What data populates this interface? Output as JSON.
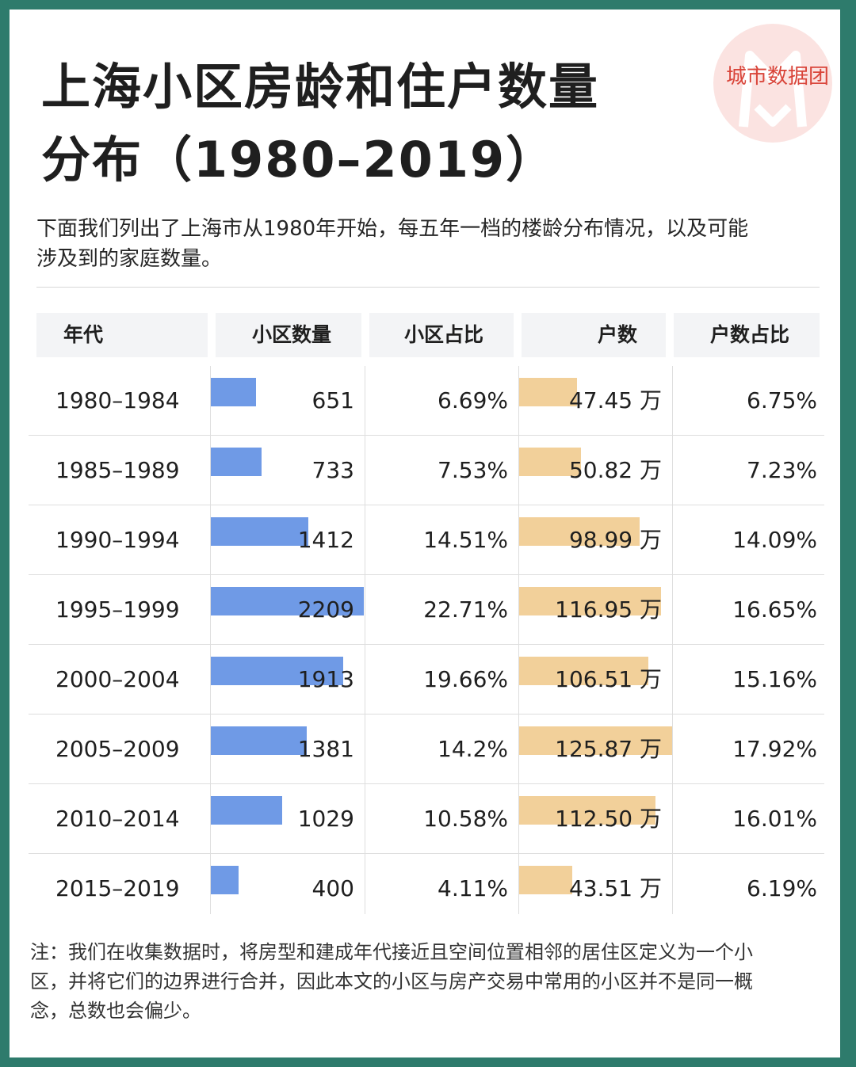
{
  "header": {
    "title_line1": "上海小区房龄和住户数量",
    "title_line2": "分布（1980–2019）",
    "brand": "城市数据团"
  },
  "intro_line1": "下面我们列出了上海市从1980年开始，每五年一档的楼龄分布情况，以及可能",
  "intro_line2": "涉及到的家庭数量。",
  "colors": {
    "frame": "#2e7b6c",
    "bar_blue": "#6f9ae6",
    "bar_orange": "#f2d09a",
    "brand_red": "#d9453a",
    "header_bg": "#f3f4f6"
  },
  "chart_data": {
    "type": "table",
    "columns": [
      "年代",
      "小区数量",
      "小区占比",
      "户数",
      "户数占比"
    ],
    "rows": [
      {
        "period": "1980–1984",
        "count": 651,
        "count_share": "6.69%",
        "households": "47.45 万",
        "households_value": 47.45,
        "households_share": "6.75%"
      },
      {
        "period": "1985–1989",
        "count": 733,
        "count_share": "7.53%",
        "households": "50.82 万",
        "households_value": 50.82,
        "households_share": "7.23%"
      },
      {
        "period": "1990–1994",
        "count": 1412,
        "count_share": "14.51%",
        "households": "98.99 万",
        "households_value": 98.99,
        "households_share": "14.09%"
      },
      {
        "period": "1995–1999",
        "count": 2209,
        "count_share": "22.71%",
        "households": "116.95 万",
        "households_value": 116.95,
        "households_share": "16.65%"
      },
      {
        "period": "2000–2004",
        "count": 1913,
        "count_share": "19.66%",
        "households": "106.51 万",
        "households_value": 106.51,
        "households_share": "15.16%"
      },
      {
        "period": "2005–2009",
        "count": 1381,
        "count_share": "14.2%",
        "households": "125.87 万",
        "households_value": 125.87,
        "households_share": "17.92%"
      },
      {
        "period": "2010–2014",
        "count": 1029,
        "count_share": "10.58%",
        "households": "112.50 万",
        "households_value": 112.5,
        "households_share": "16.01%"
      },
      {
        "period": "2015–2019",
        "count": 400,
        "count_share": "4.11%",
        "households": "43.51 万",
        "households_value": 43.51,
        "households_share": "6.19%"
      }
    ]
  },
  "note_line1": "注：我们在收集数据时，将房型和建成年代接近且空间位置相邻的居住区定义为一个小",
  "note_line2": "区，并将它们的边界进行合并，因此本文的小区与房产交易中常用的小区并不是同一概",
  "note_line3": "念，总数也会偏少。"
}
